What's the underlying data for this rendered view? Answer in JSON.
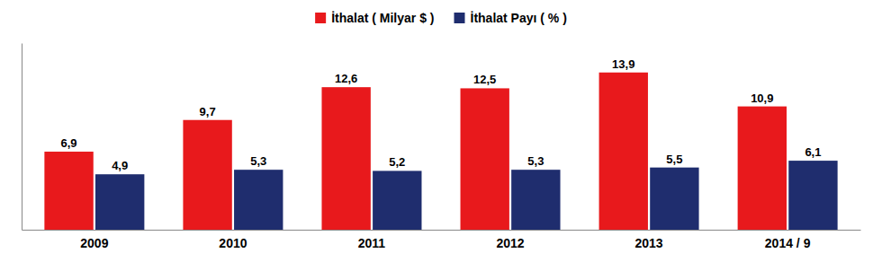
{
  "chart_data": {
    "type": "bar",
    "categories": [
      "2009",
      "2010",
      "2011",
      "2012",
      "2013",
      "2014 / 9"
    ],
    "series": [
      {
        "name": "İthalat ( Milyar $ )",
        "color": "#e8191c",
        "values": [
          6.9,
          9.7,
          12.6,
          12.5,
          13.9,
          10.9
        ],
        "value_labels": [
          "6,9",
          "9,7",
          "12,6",
          "12,5",
          "13,9",
          "10,9"
        ]
      },
      {
        "name": "İthalat Payı ( % )",
        "color": "#1f2d6e",
        "values": [
          4.9,
          5.3,
          5.2,
          5.3,
          5.5,
          6.1
        ],
        "value_labels": [
          "4,9",
          "5,3",
          "5,2",
          "5,3",
          "5,5",
          "6,1"
        ]
      }
    ],
    "ylim": [
      0,
      16.5
    ],
    "data_labels": true,
    "tick_labels": "x",
    "legend": "top",
    "grid": false
  }
}
